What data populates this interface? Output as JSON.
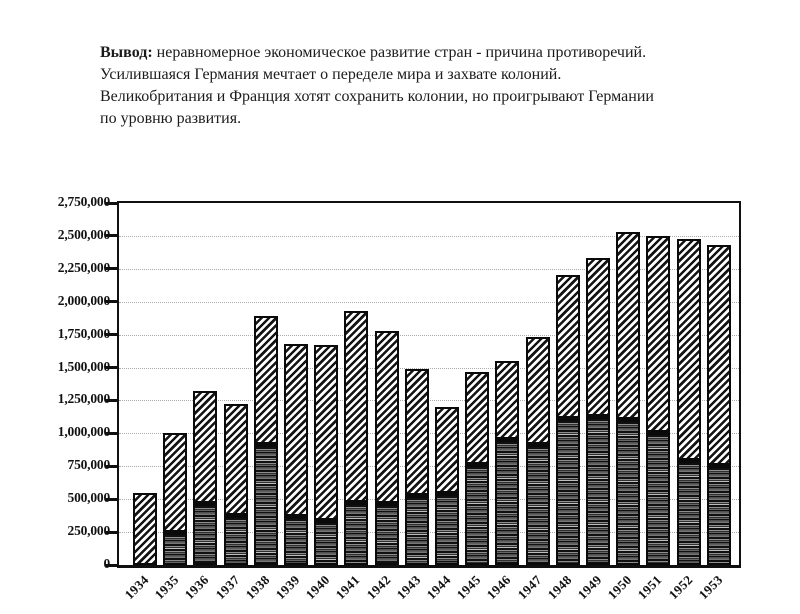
{
  "conclusion": {
    "label": "Вывод:",
    "text": " неравномерное экономическое развитие стран - причина противоречий. Усилившаяся Германия мечтает о переделе мира и захвате колоний. Великобритания и Франция хотят сохранить колонии, но проигрывают Германии по уровню развития."
  },
  "chart_data": {
    "type": "bar",
    "stacked": true,
    "title": "",
    "xlabel": "",
    "ylabel": "",
    "categories": [
      "1934",
      "1935",
      "1936",
      "1937",
      "1938",
      "1939",
      "1940",
      "1941",
      "1942",
      "1943",
      "1944",
      "1945",
      "1946",
      "1947",
      "1948",
      "1949",
      "1950",
      "1951",
      "1952",
      "1953"
    ],
    "series": [
      {
        "name": "lower segment (horizontal hatch)",
        "pattern": "horizontal-hatch",
        "values": [
          0,
          250000,
          470000,
          380000,
          920000,
          370000,
          340000,
          480000,
          470000,
          530000,
          550000,
          770000,
          960000,
          920000,
          1120000,
          1130000,
          1110000,
          1010000,
          800000,
          760000
        ]
      },
      {
        "name": "upper segment (diagonal hatch)",
        "pattern": "diagonal-hatch",
        "values": [
          550000,
          750000,
          850000,
          840000,
          970000,
          1310000,
          1330000,
          1450000,
          1310000,
          960000,
          650000,
          700000,
          590000,
          810000,
          1080000,
          1200000,
          1420000,
          1490000,
          1680000,
          1670000
        ]
      }
    ],
    "totals": [
      550000,
      1000000,
      1320000,
      1220000,
      1890000,
      1680000,
      1670000,
      1930000,
      1780000,
      1490000,
      1200000,
      1470000,
      1550000,
      1730000,
      2200000,
      2330000,
      2530000,
      2500000,
      2480000,
      2430000
    ],
    "ylim": [
      0,
      2750000
    ],
    "ytick_step": 250000,
    "ytick_labels": [
      "0",
      "250,000",
      "500,000",
      "750,000",
      "1,000,000",
      "1,250,000",
      "1,500,000",
      "1,750,000",
      "2,000,000",
      "2,250,000",
      "2,500,000",
      "2,750,000"
    ],
    "grid": "dotted-horizontal",
    "legend": "none",
    "colors": {
      "ink": "#101010",
      "grid": "#ababab",
      "background": "#ffffff"
    }
  }
}
